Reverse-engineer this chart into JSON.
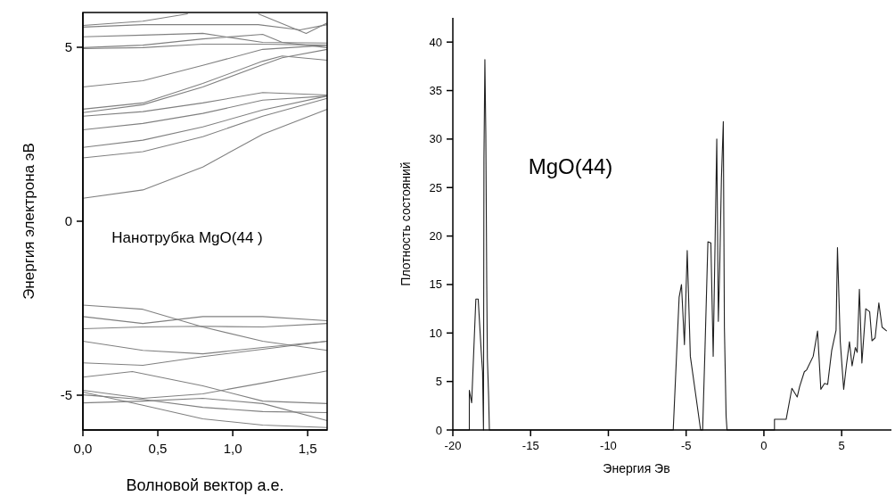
{
  "chart_data": [
    {
      "type": "line",
      "xlabel": "Волновой вектор а.е.",
      "ylabel": "Энергия электрона эВ",
      "annotations": [
        "Нанотрубка MgO(44 )"
      ],
      "xlim": [
        0,
        1.63
      ],
      "ylim": [
        -6,
        6
      ],
      "xticks": [
        {
          "value": 0,
          "label": "0,0"
        },
        {
          "value": 0.5,
          "label": "0,5"
        },
        {
          "value": 1,
          "label": "1,0"
        },
        {
          "value": 1.5,
          "label": "1,5"
        }
      ],
      "yticks": [
        -5,
        0,
        5
      ],
      "series": [
        {
          "color": "#808080",
          "x": [
            0,
            0.4,
            0.8,
            1.2,
            1.63
          ],
          "values": [
            0.66,
            0.9,
            1.56,
            2.5,
            3.22
          ]
        },
        {
          "color": "#808080",
          "x": [
            0,
            0.4,
            0.8,
            1.2,
            1.63
          ],
          "values": [
            1.82,
            2.0,
            2.43,
            3.02,
            3.53
          ]
        },
        {
          "color": "#808080",
          "x": [
            0,
            0.4,
            0.8,
            1.2,
            1.63
          ],
          "values": [
            2.12,
            2.33,
            2.71,
            3.2,
            3.6
          ]
        },
        {
          "color": "#808080",
          "x": [
            0,
            0.4,
            0.8,
            1.2,
            1.63
          ],
          "values": [
            2.63,
            2.81,
            3.1,
            3.48,
            3.6
          ]
        },
        {
          "color": "#808080",
          "x": [
            0,
            0.4,
            0.8,
            1.2,
            1.63
          ],
          "values": [
            3.02,
            3.15,
            3.4,
            3.7,
            3.63
          ]
        },
        {
          "color": "#808080",
          "x": [
            0,
            0.4,
            0.8,
            1.2,
            1.33,
            1.63
          ],
          "values": [
            3.12,
            3.35,
            3.86,
            4.5,
            4.7,
            4.94
          ]
        },
        {
          "color": "#808080",
          "x": [
            0,
            0.4,
            0.8,
            1.2,
            1.33,
            1.63
          ],
          "values": [
            3.22,
            3.4,
            3.96,
            4.6,
            4.75,
            4.63
          ]
        },
        {
          "color": "#808080",
          "x": [
            0,
            0.4,
            0.8,
            1.2,
            1.63
          ],
          "values": [
            3.86,
            4.04,
            4.48,
            4.94,
            5.06
          ]
        },
        {
          "color": "#808080",
          "x": [
            0,
            0.4,
            0.8,
            1.2,
            1.63
          ],
          "values": [
            4.96,
            4.99,
            5.09,
            5.09,
            5.06
          ]
        },
        {
          "color": "#808080",
          "x": [
            0,
            0.4,
            0.8,
            1.2,
            1.33,
            1.63
          ],
          "values": [
            4.99,
            5.06,
            5.24,
            5.37,
            5.14,
            4.99
          ]
        },
        {
          "color": "#808080",
          "x": [
            0,
            0.4,
            0.8,
            1.2,
            1.63
          ],
          "values": [
            5.3,
            5.35,
            5.4,
            5.14,
            5.12
          ]
        },
        {
          "color": "#808080",
          "x": [
            0,
            0.4,
            0.8,
            1.17,
            1.45,
            1.63
          ],
          "values": [
            5.58,
            5.65,
            5.65,
            5.65,
            5.5,
            5.65
          ]
        },
        {
          "color": "#808080",
          "x": [
            0,
            0.4,
            0.7
          ],
          "values": [
            5.63,
            5.75,
            5.96
          ]
        },
        {
          "color": "#808080",
          "x": [
            1.17,
            1.49,
            1.63
          ],
          "values": [
            5.96,
            5.4,
            5.7
          ]
        },
        {
          "color": "#808080",
          "x": [
            0,
            0.4,
            0.8,
            1.2,
            1.63
          ],
          "values": [
            -2.41,
            -2.53,
            -3.04,
            -3.45,
            -3.71
          ]
        },
        {
          "color": "#808080",
          "x": [
            0,
            0.4,
            0.8,
            1.2,
            1.63
          ],
          "values": [
            -2.74,
            -2.94,
            -2.74,
            -2.74,
            -2.86
          ]
        },
        {
          "color": "#808080",
          "x": [
            0,
            0.4,
            0.8,
            1.2,
            1.63
          ],
          "values": [
            -3.09,
            -3.04,
            -3.02,
            -3.04,
            -2.94
          ]
        },
        {
          "color": "#808080",
          "x": [
            0,
            0.4,
            0.8,
            1.2,
            1.63
          ],
          "values": [
            -3.45,
            -3.71,
            -3.81,
            -3.63,
            -3.45
          ]
        },
        {
          "color": "#808080",
          "x": [
            0,
            0.4,
            0.8,
            1.2,
            1.63
          ],
          "values": [
            -4.07,
            -4.14,
            -3.89,
            -3.68,
            -3.45
          ]
        },
        {
          "color": "#808080",
          "x": [
            0,
            0.33,
            0.8,
            1.2,
            1.63
          ],
          "values": [
            -4.48,
            -4.32,
            -4.73,
            -5.17,
            -5.24
          ]
        },
        {
          "color": "#808080",
          "x": [
            0,
            0.4,
            0.8,
            1.2,
            1.63
          ],
          "values": [
            -4.86,
            -5.09,
            -4.96,
            -4.65,
            -4.3
          ]
        },
        {
          "color": "#808080",
          "x": [
            0,
            0.4,
            0.8,
            1.2,
            1.63
          ],
          "values": [
            -4.99,
            -5.12,
            -5.35,
            -5.47,
            -5.5
          ]
        },
        {
          "color": "#808080",
          "x": [
            0,
            0.4,
            0.8,
            1.2,
            1.63
          ],
          "values": [
            -5.22,
            -5.17,
            -5.09,
            -5.24,
            -5.73
          ]
        },
        {
          "color": "#808080",
          "x": [
            0,
            0.4,
            0.8,
            1.2,
            1.63
          ],
          "values": [
            -4.91,
            -5.29,
            -5.68,
            -5.86,
            -5.93
          ]
        }
      ]
    },
    {
      "type": "line",
      "xlabel": "Энергия Эв",
      "ylabel": "Плотность состояний",
      "annotations": [
        "MgO(44)"
      ],
      "xlim": [
        -20,
        8.2
      ],
      "ylim": [
        0,
        42.5
      ],
      "xticks": [
        -20,
        -15,
        -10,
        -5,
        0,
        5
      ],
      "yticks": [
        0,
        5,
        10,
        15,
        20,
        25,
        30,
        35,
        40
      ],
      "series": [
        {
          "color": "#202020",
          "x": [
            -20,
            -18.94,
            -18.94,
            -18.79,
            -18.52,
            -18.37,
            -18.18,
            -18.09,
            -18.03,
            -18.0,
            -17.94,
            -17.88,
            -17.82,
            -17.78,
            -17.7,
            -17.65,
            -5.83,
            -5.68,
            -5.45,
            -5.3,
            -5.11,
            -4.93,
            -4.73,
            -4.39,
            -4.07,
            -3.94,
            -3.79,
            -3.6,
            -3.41,
            -3.26,
            -3.03,
            -2.93,
            -2.84,
            -2.73,
            -2.61,
            -2.54,
            -2.43,
            -2.37,
            0.68,
            0.68,
            1.43,
            1.8,
            2.14,
            2.3,
            2.6,
            2.75,
            3.17,
            3.45,
            3.66,
            3.9,
            4.1,
            4.36,
            4.64,
            4.73,
            4.91,
            5.13,
            5.3,
            5.5,
            5.67,
            5.88,
            6.0,
            6.14,
            6.3,
            6.55,
            6.8,
            6.95,
            7.15,
            7.39,
            7.6,
            7.9
          ],
          "values": [
            0,
            0,
            4.1,
            2.8,
            13.5,
            13.5,
            8.2,
            6,
            0,
            28,
            38.2,
            30.5,
            15,
            7.4,
            3.5,
            0,
            0,
            5.4,
            13.7,
            15,
            8.8,
            18.5,
            7.6,
            3.7,
            0,
            0,
            8.2,
            19.4,
            19.3,
            7.6,
            30,
            11.2,
            16.8,
            26,
            31.8,
            10.6,
            1.4,
            0,
            0,
            1.1,
            1.1,
            4.3,
            3.4,
            4.5,
            6.0,
            6.2,
            7.6,
            10.2,
            4.2,
            4.8,
            4.7,
            8.2,
            10.3,
            18.8,
            9.1,
            4.2,
            6.6,
            9.1,
            6.6,
            8.5,
            8.0,
            14.5,
            6.9,
            12.5,
            12.2,
            9.2,
            9.5,
            13.1,
            10.6,
            10.2
          ]
        }
      ]
    }
  ]
}
